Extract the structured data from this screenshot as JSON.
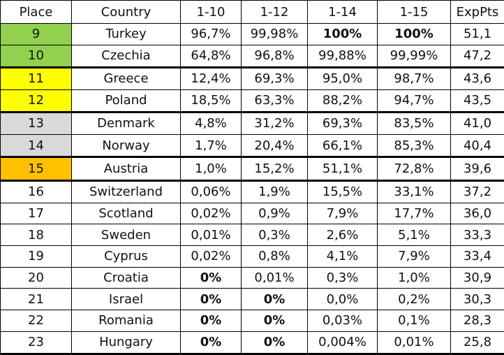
{
  "table": {
    "header": [
      "Place",
      "Country",
      "1-10",
      "1-12",
      "1-14",
      "1-15",
      "ExpPts"
    ],
    "rows": [
      {
        "cells": [
          "9",
          "Turkey",
          "96,7%",
          "99,98%",
          "100%",
          "100%",
          "51,1"
        ],
        "color": "#92d050",
        "bold": [
          4,
          5
        ]
      },
      {
        "cells": [
          "10",
          "Czechia",
          "64,8%",
          "96,8%",
          "99,88%",
          "99,99%",
          "47,2"
        ],
        "color": "#92d050",
        "bold": []
      },
      {
        "cells": [
          "11",
          "Greece",
          "12,4%",
          "69,3%",
          "95,0%",
          "98,7%",
          "43,6"
        ],
        "color": "#ffff00",
        "bold": []
      },
      {
        "cells": [
          "12",
          "Poland",
          "18,5%",
          "63,3%",
          "88,2%",
          "94,7%",
          "43,5"
        ],
        "color": "#ffff00",
        "bold": []
      },
      {
        "cells": [
          "13",
          "Denmark",
          "4,8%",
          "31,2%",
          "69,3%",
          "83,5%",
          "41,0"
        ],
        "color": "#d9d9d9",
        "bold": []
      },
      {
        "cells": [
          "14",
          "Norway",
          "1,7%",
          "20,4%",
          "66,1%",
          "85,3%",
          "40,4"
        ],
        "color": "#d9d9d9",
        "bold": []
      },
      {
        "cells": [
          "15",
          "Austria",
          "1,0%",
          "15,2%",
          "51,1%",
          "72,8%",
          "39,6"
        ],
        "color": "#ffc000",
        "bold": []
      },
      {
        "cells": [
          "16",
          "Switzerland",
          "0,06%",
          "1,9%",
          "15,5%",
          "33,1%",
          "37,2"
        ],
        "color": "#ffffff",
        "bold": []
      },
      {
        "cells": [
          "17",
          "Scotland",
          "0,02%",
          "0,9%",
          "7,9%",
          "17,7%",
          "36,0"
        ],
        "color": "#ffffff",
        "bold": []
      },
      {
        "cells": [
          "18",
          "Sweden",
          "0,01%",
          "0,3%",
          "2,6%",
          "5,1%",
          "33,3"
        ],
        "color": "#ffffff",
        "bold": []
      },
      {
        "cells": [
          "19",
          "Cyprus",
          "0,02%",
          "0,8%",
          "4,1%",
          "7,9%",
          "33,4"
        ],
        "color": "#ffffff",
        "bold": []
      },
      {
        "cells": [
          "20",
          "Croatia",
          "0%",
          "0,01%",
          "0,3%",
          "1,0%",
          "30,9"
        ],
        "color": "#ffffff",
        "bold": [
          2
        ]
      },
      {
        "cells": [
          "21",
          "Israel",
          "0%",
          "0%",
          "0,0%",
          "0,2%",
          "30,3"
        ],
        "color": "#ffffff",
        "bold": [
          2,
          3
        ]
      },
      {
        "cells": [
          "22",
          "Romania",
          "0%",
          "0%",
          "0,03%",
          "0,1%",
          "28,3"
        ],
        "color": "#ffffff",
        "bold": [
          2,
          3
        ]
      },
      {
        "cells": [
          "23",
          "Hungary",
          "0%",
          "0%",
          "0,004%",
          "0,01%",
          "25,8"
        ],
        "color": "#ffffff",
        "bold": [
          2,
          3
        ]
      }
    ]
  }
}
